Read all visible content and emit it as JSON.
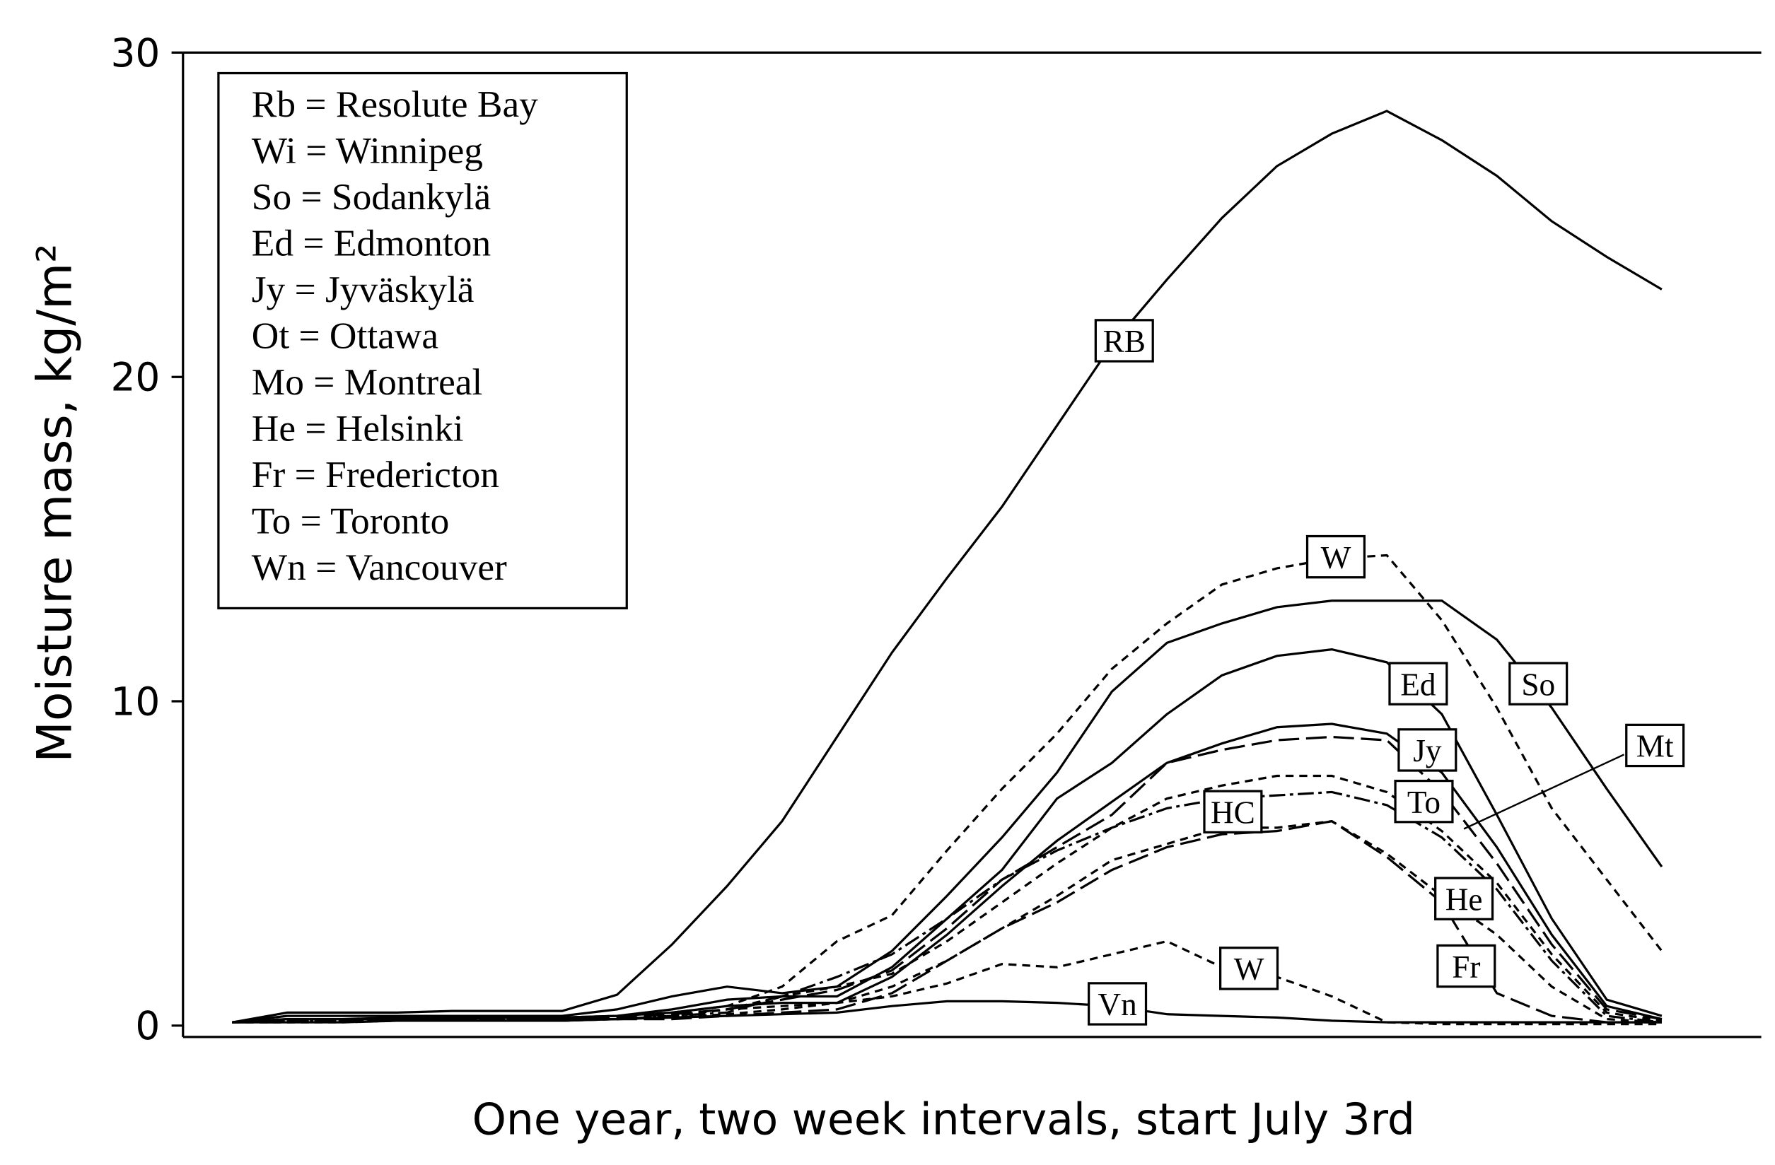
{
  "chart_data": {
    "type": "line",
    "xlabel": "One year, two week intervals, start July 3rd",
    "ylabel": "Moisture mass, kg/m²",
    "ylim": [
      -0.35,
      30
    ],
    "yticks": [
      0,
      10,
      20,
      30
    ],
    "key": [
      "Rb = Resolute Bay",
      "Wi = Winnipeg",
      "So = Sodankylä",
      "Ed = Edmonton",
      "Jy = Jyväskylä",
      "Ot = Ottawa",
      "Mo = Montreal",
      "He = Helsinki",
      "Fr = Fredericton",
      "To = Toronto",
      "Wn = Vancouver"
    ],
    "categories": [
      null,
      null,
      null,
      null,
      null,
      null,
      null,
      null,
      null,
      null,
      null,
      null,
      null,
      null,
      null,
      null,
      null,
      null,
      null,
      null,
      null,
      null,
      null,
      null,
      null,
      null,
      null
    ],
    "series": [
      {
        "name": "RB",
        "color": "#000000",
        "dash": "solid",
        "values": [
          0.1,
          0.4,
          0.4,
          0.4,
          0.45,
          0.45,
          0.45,
          0.95,
          2.5,
          4.3,
          6.3,
          8.9,
          11.5,
          13.8,
          16,
          18.5,
          21,
          23,
          24.9,
          26.5,
          27.5,
          28.2,
          27.3,
          26.2,
          24.8,
          23.7,
          22.7
        ]
      },
      {
        "name": "W",
        "color": "#000000",
        "dash": "dashed",
        "values": [
          0.1,
          0.2,
          0.2,
          0.2,
          0.25,
          0.25,
          0.25,
          0.3,
          0.4,
          0.6,
          1.2,
          2.6,
          3.4,
          5.4,
          7.3,
          9,
          11,
          12.4,
          13.6,
          14.1,
          14.4,
          14.5,
          12.5,
          9.8,
          6.7,
          4.5,
          2.3
        ]
      },
      {
        "name": "So",
        "color": "#000000",
        "dash": "solid",
        "values": [
          0.1,
          0.3,
          0.3,
          0.3,
          0.3,
          0.3,
          0.3,
          0.5,
          0.9,
          1.2,
          1.0,
          1.2,
          2.3,
          4,
          5.8,
          7.8,
          10.3,
          11.8,
          12.4,
          12.9,
          13.1,
          13.1,
          13.1,
          11.9,
          9.8,
          7.3,
          4.9
        ]
      },
      {
        "name": "Ed",
        "color": "#000000",
        "dash": "solid",
        "values": [
          0.1,
          0.2,
          0.2,
          0.25,
          0.25,
          0.25,
          0.25,
          0.3,
          0.5,
          0.8,
          0.9,
          0.9,
          1.8,
          3.3,
          4.8,
          7,
          8.1,
          9.6,
          10.8,
          11.4,
          11.6,
          11.2,
          9.6,
          6.5,
          3.3,
          0.8,
          0.3
        ]
      },
      {
        "name": "Jy",
        "color": "#000000",
        "dash": "solid",
        "values": [
          0.1,
          0.2,
          0.2,
          0.2,
          0.2,
          0.25,
          0.25,
          0.3,
          0.4,
          0.6,
          0.7,
          0.7,
          1.5,
          2.8,
          4.3,
          5.7,
          6.9,
          8.1,
          8.7,
          9.2,
          9.3,
          9.0,
          7.8,
          5.5,
          2.8,
          0.6,
          0.2
        ]
      },
      {
        "name": "Mt",
        "color": "#000000",
        "dash": "longdash",
        "values": [
          0.1,
          0.15,
          0.15,
          0.2,
          0.2,
          0.2,
          0.2,
          0.25,
          0.35,
          0.5,
          0.8,
          1.1,
          1.7,
          3.0,
          4.5,
          5.5,
          6.5,
          8.1,
          8.5,
          8.8,
          8.9,
          8.8,
          7.2,
          5.0,
          2.5,
          0.5,
          0.2
        ]
      },
      {
        "name": "To",
        "color": "#000000",
        "dash": "dashed",
        "values": [
          0.1,
          0.15,
          0.15,
          0.2,
          0.2,
          0.2,
          0.2,
          0.2,
          0.3,
          0.5,
          0.9,
          1.2,
          1.6,
          2.6,
          3.8,
          5.0,
          6.1,
          7.0,
          7.4,
          7.7,
          7.7,
          7.2,
          6.0,
          4.4,
          2.2,
          0.4,
          0.15
        ]
      },
      {
        "name": "HC",
        "color": "#000000",
        "dash": "dashdot",
        "values": [
          0.1,
          0.15,
          0.15,
          0.2,
          0.2,
          0.2,
          0.2,
          0.2,
          0.3,
          0.4,
          0.9,
          1.5,
          2.2,
          3.3,
          4.5,
          5.4,
          6.1,
          6.7,
          7.0,
          7.1,
          7.2,
          6.8,
          5.8,
          4.2,
          2.0,
          0.3,
          0.1
        ]
      },
      {
        "name": "He",
        "color": "#000000",
        "dash": "dashed",
        "values": [
          0.1,
          0.15,
          0.15,
          0.15,
          0.2,
          0.2,
          0.2,
          0.2,
          0.25,
          0.35,
          0.5,
          0.7,
          1.2,
          2.0,
          3.0,
          4.0,
          5.1,
          5.6,
          6.1,
          6.1,
          6.3,
          5.3,
          4.0,
          2.8,
          1.2,
          0.2,
          0.1
        ]
      },
      {
        "name": "Fr",
        "color": "#000000",
        "dash": "longdash",
        "values": [
          0.1,
          0.1,
          0.15,
          0.15,
          0.15,
          0.2,
          0.2,
          0.2,
          0.2,
          0.3,
          0.4,
          0.5,
          1.0,
          2.0,
          3.0,
          3.8,
          4.8,
          5.5,
          5.9,
          6.0,
          6.3,
          5.2,
          3.8,
          1.0,
          0.3,
          0.1,
          0.1
        ]
      },
      {
        "name": "W",
        "color": "#000000",
        "dash": "dashed",
        "values": [
          0.1,
          0.1,
          0.1,
          0.15,
          0.15,
          0.15,
          0.15,
          0.2,
          0.3,
          0.5,
          0.6,
          0.7,
          0.9,
          1.3,
          1.9,
          1.8,
          2.2,
          2.6,
          1.8,
          1.5,
          0.9,
          0.1,
          0.05,
          0.05,
          0.05,
          0.05,
          0.05
        ]
      },
      {
        "name": "Vn",
        "color": "#000000",
        "dash": "solid",
        "values": [
          0.1,
          0.1,
          0.1,
          0.15,
          0.15,
          0.15,
          0.15,
          0.2,
          0.25,
          0.3,
          0.35,
          0.4,
          0.6,
          0.75,
          0.75,
          0.7,
          0.6,
          0.35,
          0.3,
          0.25,
          0.15,
          0.1,
          0.1,
          0.1,
          0.1,
          0.1,
          0.1
        ]
      }
    ]
  }
}
